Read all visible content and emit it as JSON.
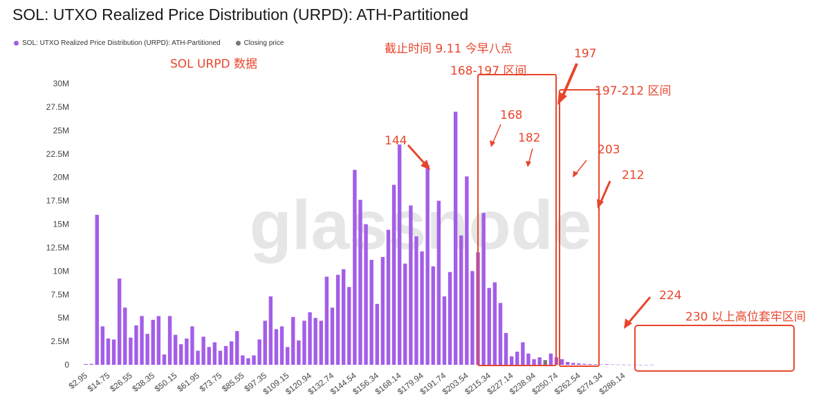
{
  "chart_data": {
    "type": "bar",
    "title": "SOL: UTXO Realized Price Distribution (URPD): ATH-Partitioned",
    "legend": [
      {
        "name": "SOL: UTXO Realized Price Distribution (URPD): ATH-Partitioned",
        "color": "#a35ee8"
      },
      {
        "name": "Closing price",
        "color": "#777777"
      }
    ],
    "legend_position": "top-left",
    "watermark": "glassnode",
    "grid": false,
    "ylim": [
      0,
      30000000
    ],
    "y_ticks": [
      "0",
      "2.5M",
      "5M",
      "7.5M",
      "10M",
      "12.5M",
      "15M",
      "17.5M",
      "20M",
      "22.5M",
      "25M",
      "27.5M",
      "30M"
    ],
    "x_tick_labels": [
      "$2.95",
      "$14.75",
      "$26.55",
      "$38.35",
      "$50.15",
      "$61.95",
      "$73.75",
      "$85.55",
      "$97.35",
      "$109.15",
      "$120.94",
      "$132.74",
      "$144.54",
      "$156.34",
      "$168.14",
      "$179.94",
      "$191.74",
      "$203.54",
      "$215.34",
      "$227.14",
      "$238.94",
      "$250.74",
      "$262.54",
      "$274.34",
      "$286.14"
    ],
    "x_tick_every": 4,
    "closing_price_index": 82,
    "series": [
      {
        "name": "SOL: UTXO Realized Price Distribution (URPD): ATH-Partitioned",
        "values": [
          80000,
          100000,
          16000000,
          4100000,
          2800000,
          2700000,
          9200000,
          6100000,
          2900000,
          4200000,
          5200000,
          3300000,
          4800000,
          5200000,
          1100000,
          5200000,
          3200000,
          2200000,
          2800000,
          4100000,
          1500000,
          3000000,
          1900000,
          2400000,
          1500000,
          2000000,
          2500000,
          3600000,
          1000000,
          700000,
          1000000,
          2700000,
          4700000,
          7300000,
          3800000,
          4100000,
          1900000,
          5100000,
          2600000,
          4700000,
          5600000,
          5000000,
          4700000,
          9400000,
          6100000,
          9600000,
          10200000,
          8300000,
          20800000,
          17600000,
          15000000,
          11200000,
          6500000,
          11500000,
          14400000,
          19200000,
          23500000,
          10800000,
          17000000,
          13700000,
          12100000,
          21300000,
          10500000,
          17500000,
          7300000,
          9900000,
          27000000,
          13800000,
          20100000,
          10000000,
          12000000,
          16200000,
          8200000,
          8800000,
          6600000,
          3400000,
          900000,
          1400000,
          2400000,
          1200000,
          600000,
          800000,
          500000,
          1200000,
          800000,
          600000,
          300000,
          200000,
          150000,
          100000,
          80000,
          60000,
          40000,
          60000,
          30000,
          20000,
          15000,
          10000,
          10000,
          5000,
          5000,
          5000
        ]
      }
    ]
  },
  "annotations": {
    "header": "SOL URPD 数据",
    "cutoff": "截止时间 9.11  今早八点",
    "range_168_197": "168-197 区间",
    "range_197_212": "197-212 区间",
    "high_zone": "230 以上高位套牢区间",
    "p197": "197",
    "p168": "168",
    "p182": "182",
    "p144": "144",
    "p203": "203",
    "p212": "212",
    "p224": "224"
  },
  "colors": {
    "bar": "#a35ee8",
    "closing": "#777777",
    "annotation": "#e8452c",
    "axis_text": "#444444",
    "watermark": "#e6e6e6"
  }
}
